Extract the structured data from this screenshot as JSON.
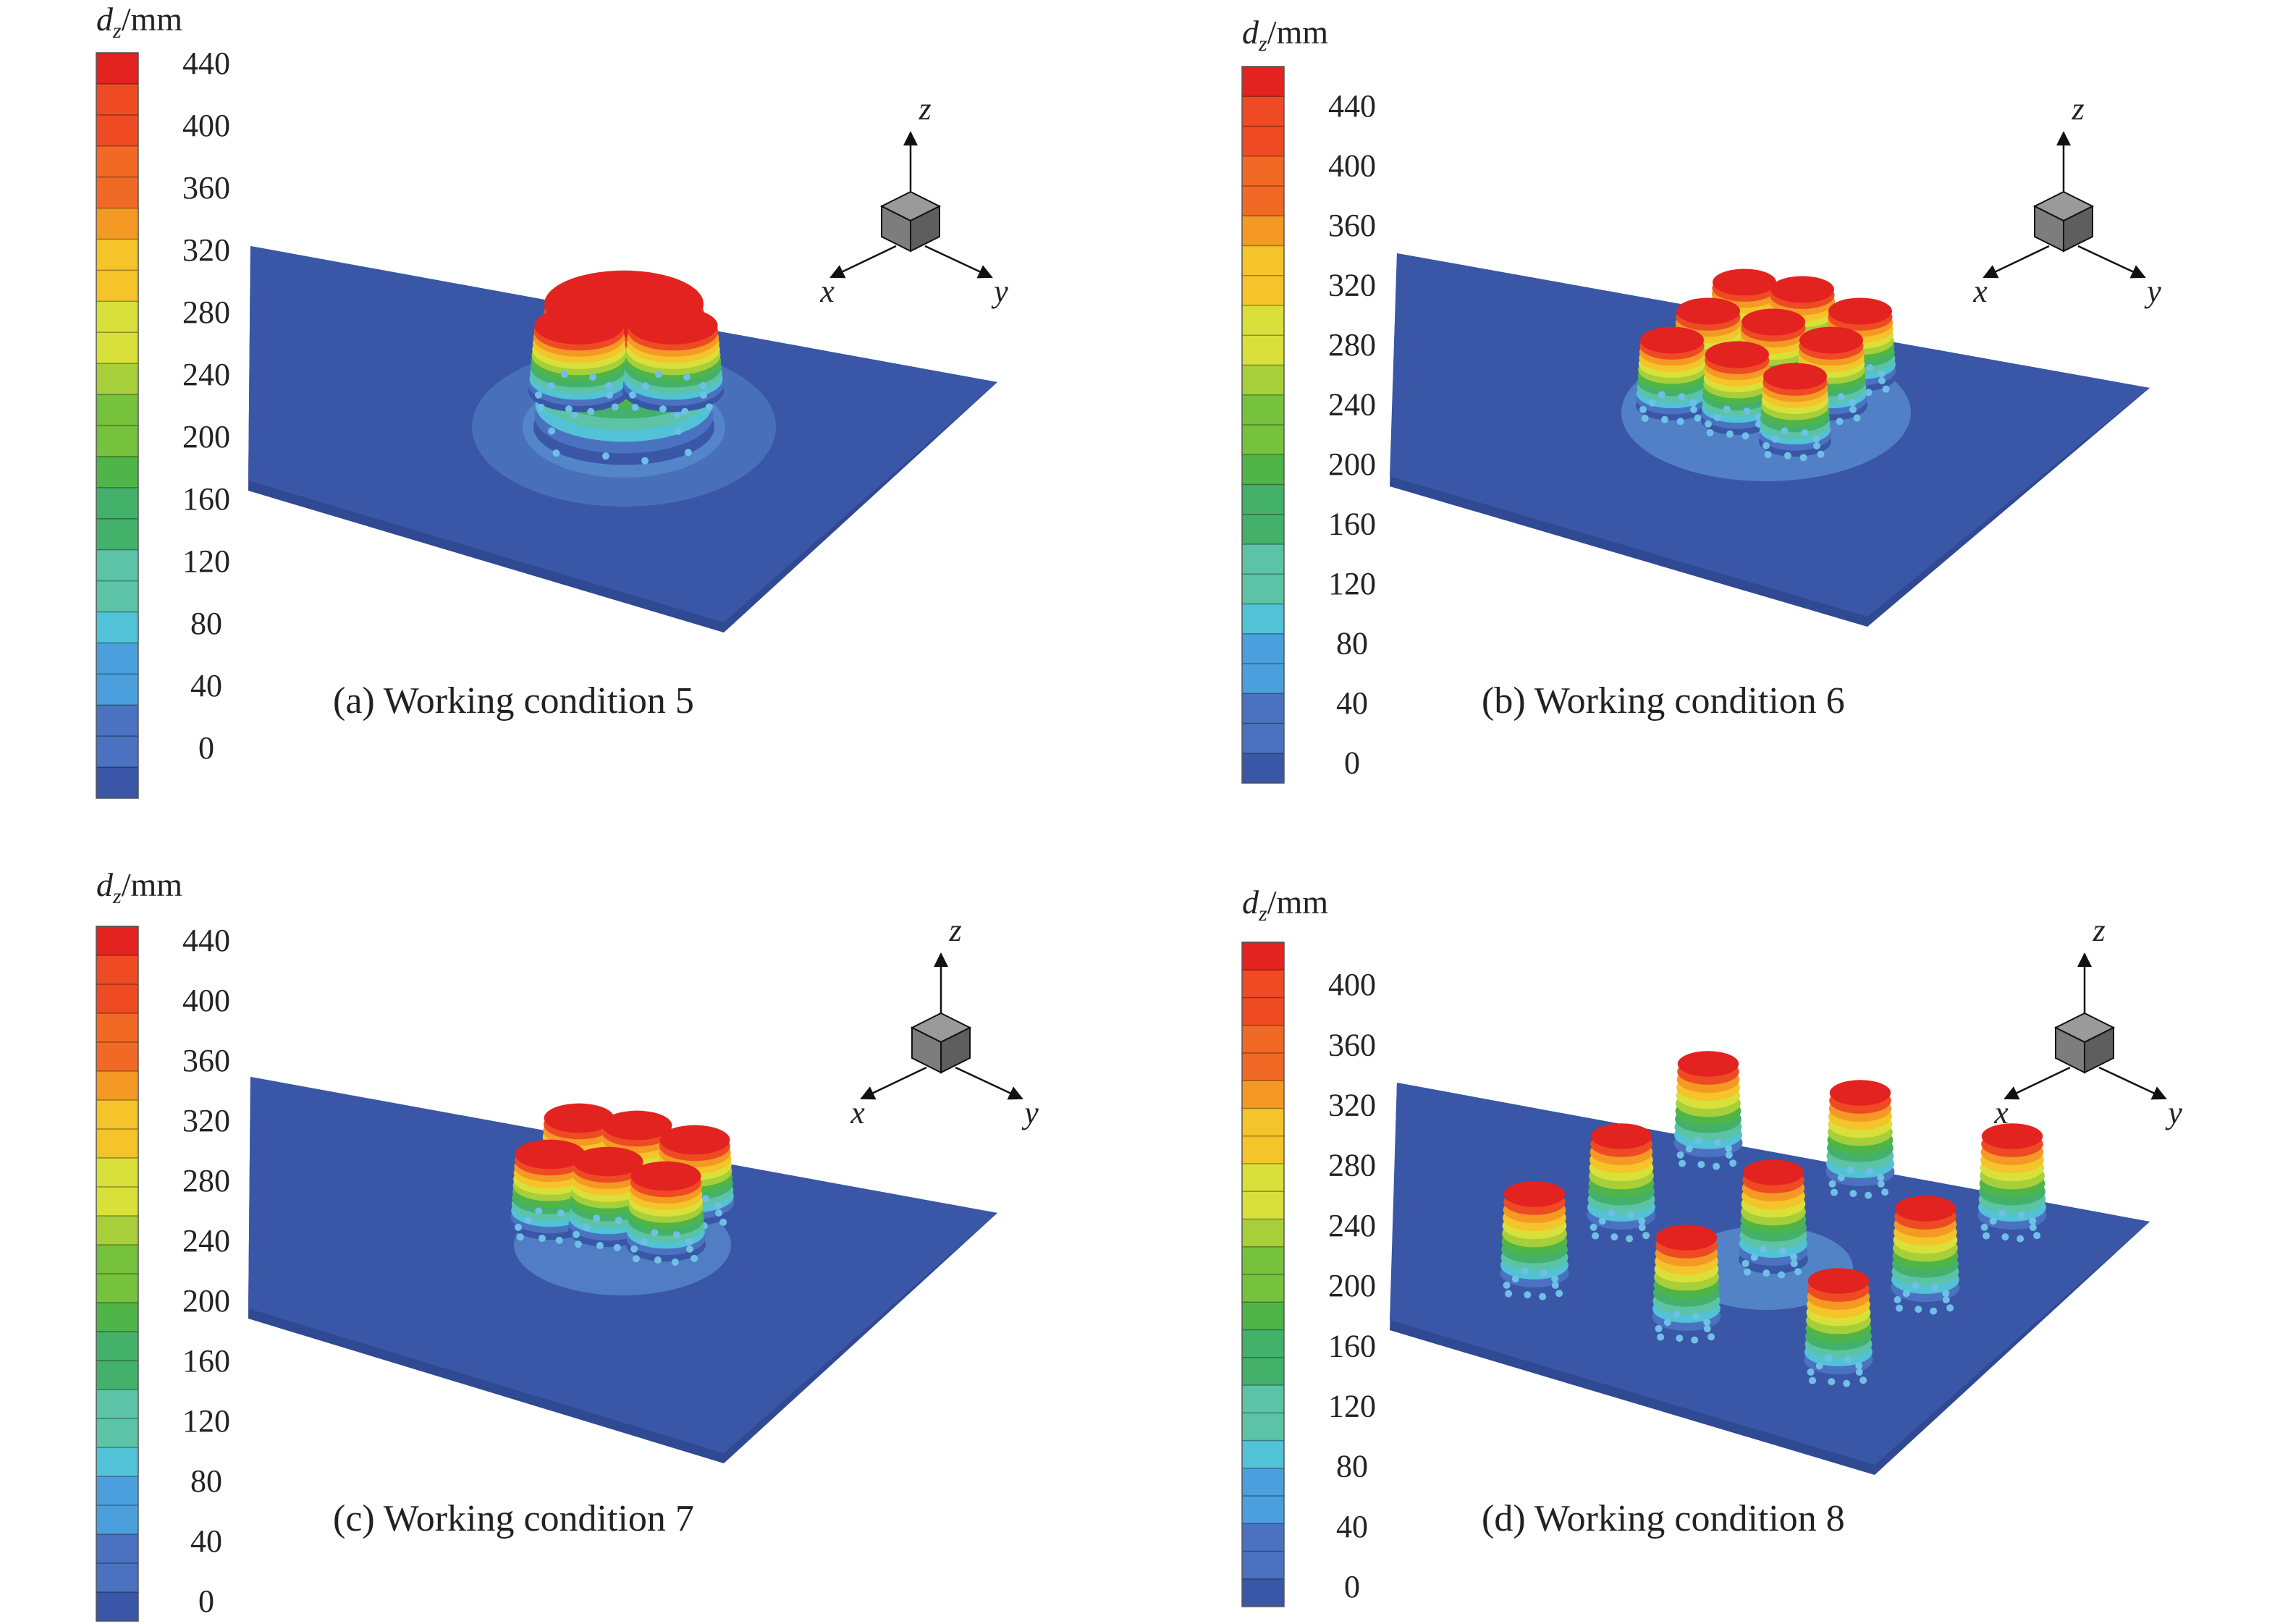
{
  "panels": [
    {
      "id": "a",
      "caption": "(a) Working condition 5",
      "legend_title_var": "d",
      "legend_title_sub": "z",
      "legend_title_unit": "/mm",
      "legend_ticks": [
        "440",
        "400",
        "360",
        "320",
        "280",
        "240",
        "200",
        "160",
        "120",
        "80",
        "40",
        "0"
      ],
      "axis_labels": {
        "x": "x",
        "y": "y",
        "z": "z"
      }
    },
    {
      "id": "b",
      "caption": "(b) Working condition 6",
      "legend_title_var": "d",
      "legend_title_sub": "z",
      "legend_title_unit": "/mm",
      "legend_ticks": [
        "440",
        "400",
        "360",
        "320",
        "280",
        "240",
        "200",
        "160",
        "120",
        "80",
        "40",
        "0"
      ],
      "axis_labels": {
        "x": "x",
        "y": "y",
        "z": "z"
      }
    },
    {
      "id": "c",
      "caption": "(c) Working condition 7",
      "legend_title_var": "d",
      "legend_title_sub": "z",
      "legend_title_unit": "/mm",
      "legend_ticks": [
        "440",
        "400",
        "360",
        "320",
        "280",
        "240",
        "200",
        "160",
        "120",
        "80",
        "40",
        "0"
      ],
      "axis_labels": {
        "x": "x",
        "y": "y",
        "z": "z"
      }
    },
    {
      "id": "d",
      "caption": "(d) Working condition 8",
      "legend_title_var": "d",
      "legend_title_sub": "z",
      "legend_title_unit": "/mm",
      "legend_ticks": [
        "400",
        "360",
        "320",
        "280",
        "240",
        "200",
        "160",
        "120",
        "80",
        "40",
        "0"
      ],
      "axis_labels": {
        "x": "x",
        "y": "y",
        "z": "z"
      }
    }
  ],
  "colors": {
    "plate": "#3a56a6",
    "plate_edge": "#2f4a92",
    "halo": "#4a73bd",
    "ramp": [
      "#e3231f",
      "#ee4a24",
      "#f06a26",
      "#f49a24",
      "#f5c32a",
      "#d9e03a",
      "#a6cf3a",
      "#76c23c",
      "#4fb548",
      "#44b16a",
      "#5cc3a6",
      "#52c2d6",
      "#4a9fdc",
      "#4a72c0",
      "#3a56a6"
    ]
  }
}
